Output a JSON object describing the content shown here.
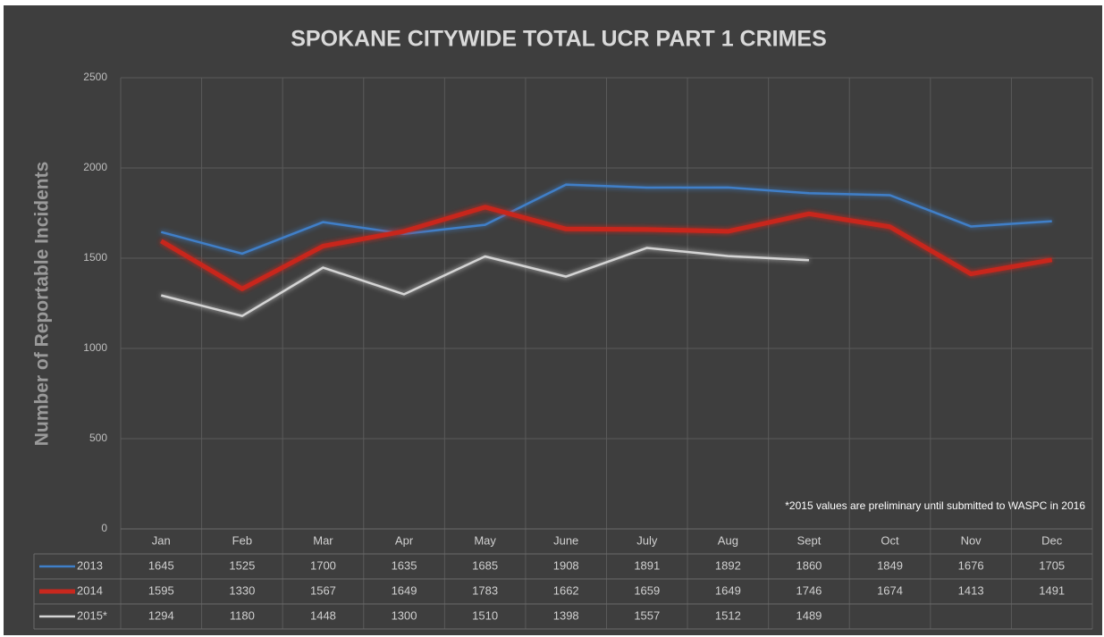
{
  "chart_data": {
    "type": "line",
    "title": "SPOKANE CITYWIDE TOTAL UCR PART 1 CRIMES",
    "y_label": "Number of Reportable Incidents",
    "annotation": "*2015 values are preliminary until submitted to WASPC in 2016",
    "categories": [
      "Jan",
      "Feb",
      "Mar",
      "Apr",
      "May",
      "June",
      "July",
      "Aug",
      "Sept",
      "Oct",
      "Nov",
      "Dec"
    ],
    "series": [
      {
        "name": "2013",
        "color": "#3f7fc8",
        "values": [
          1645,
          1525,
          1700,
          1635,
          1685,
          1908,
          1891,
          1892,
          1860,
          1849,
          1676,
          1705
        ]
      },
      {
        "name": "2014",
        "color": "#c8281e",
        "values": [
          1595,
          1330,
          1567,
          1649,
          1783,
          1662,
          1659,
          1649,
          1746,
          1674,
          1413,
          1491
        ]
      },
      {
        "name": "2015*",
        "color": "#d4d4d4",
        "values": [
          1294,
          1180,
          1448,
          1300,
          1510,
          1398,
          1557,
          1512,
          1489,
          null,
          null,
          null
        ]
      }
    ],
    "ylim": [
      0,
      2500
    ],
    "yticks": [
      0,
      500,
      1000,
      1500,
      2000,
      2500
    ],
    "grid": true
  }
}
